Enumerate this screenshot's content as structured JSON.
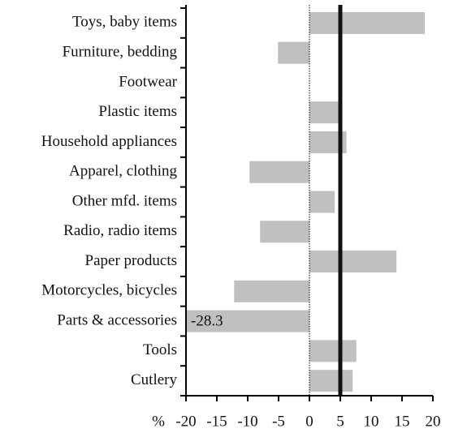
{
  "chart_data": {
    "type": "barh",
    "categories": [
      "Toys, baby items",
      "Furniture, bedding",
      "Footwear",
      "Plastic items",
      "Household appliances",
      "Apparel, clothing",
      "Other mfd. items",
      "Radio, radio items",
      "Paper products",
      "Motorcycles, bicycles",
      "Parts & accessories",
      "Tools",
      "Cutlery"
    ],
    "values": [
      18.7,
      -5.1,
      0,
      4.9,
      6.0,
      -9.7,
      4.1,
      -8.0,
      14.1,
      -12.2,
      -28.3,
      7.6,
      7.0
    ],
    "value_labels": [
      null,
      null,
      null,
      null,
      null,
      null,
      null,
      null,
      null,
      null,
      "-28.3",
      null,
      null
    ],
    "color": "#c0c0c0",
    "xlabel": "%",
    "xlim": [
      -20,
      20
    ],
    "xticks": [
      -20,
      -15,
      -10,
      -5,
      0,
      5,
      10,
      15,
      20
    ],
    "reference_line": 5
  }
}
